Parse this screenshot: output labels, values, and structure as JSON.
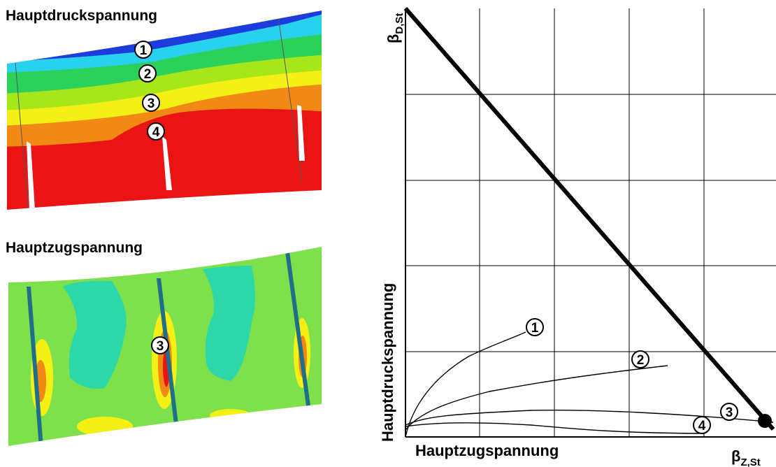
{
  "left_panels": {
    "compression_title": "Hauptdruckspannung",
    "tension_title": "Hauptzugspannung",
    "compression_markers": [
      "1",
      "2",
      "3",
      "4"
    ],
    "tension_markers": [
      "3"
    ]
  },
  "diagram": {
    "y_axis_symbol": "β",
    "y_axis_subscript": "D,St",
    "x_axis_symbol": "β",
    "x_axis_subscript": "Z,St",
    "y_axis_label": "Hauptdruckspannung",
    "x_axis_label": "Hauptzugspannung",
    "curve_labels": [
      "1",
      "2",
      "3",
      "4"
    ]
  },
  "colors": {
    "contour_blue": "#1c3ddb",
    "contour_cyan": "#28d2ee",
    "contour_green": "#2bd15a",
    "contour_yellow": "#f4f015",
    "contour_orange": "#f08a14",
    "contour_red": "#ea1414",
    "tension_green": "#7ee04a",
    "tension_teal": "#2cd8a8"
  }
}
